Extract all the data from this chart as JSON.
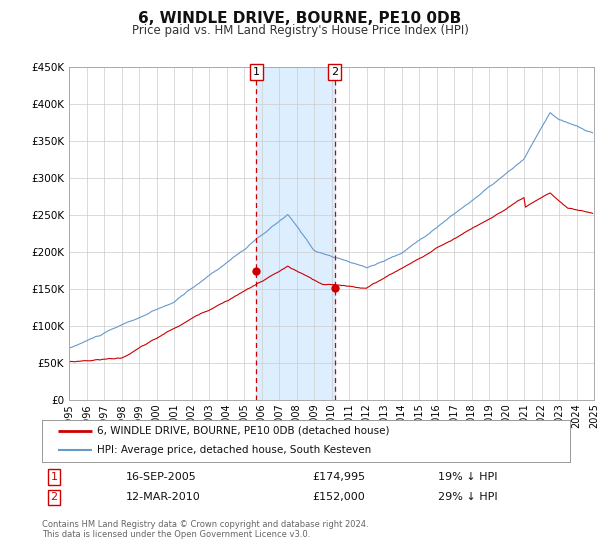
{
  "title": "6, WINDLE DRIVE, BOURNE, PE10 0DB",
  "subtitle": "Price paid vs. HM Land Registry's House Price Index (HPI)",
  "legend_line1": "6, WINDLE DRIVE, BOURNE, PE10 0DB (detached house)",
  "legend_line2": "HPI: Average price, detached house, South Kesteven",
  "footer1": "Contains HM Land Registry data © Crown copyright and database right 2024.",
  "footer2": "This data is licensed under the Open Government Licence v3.0.",
  "sale1_date": "16-SEP-2005",
  "sale1_price": "£174,995",
  "sale1_hpi": "19% ↓ HPI",
  "sale2_date": "12-MAR-2010",
  "sale2_price": "£152,000",
  "sale2_hpi": "29% ↓ HPI",
  "red_line_color": "#cc0000",
  "blue_line_color": "#6699cc",
  "shade_color": "#ddeeff",
  "marker_color": "#cc0000",
  "grid_color": "#cccccc",
  "background_color": "#ffffff",
  "sale1_x": 2005.71,
  "sale2_x": 2010.19,
  "sale1_y": 174995,
  "sale2_y": 152000,
  "ylim": [
    0,
    450000
  ],
  "xlim": [
    1995,
    2025
  ],
  "yticks": [
    0,
    50000,
    100000,
    150000,
    200000,
    250000,
    300000,
    350000,
    400000,
    450000
  ],
  "ytick_labels": [
    "£0",
    "£50K",
    "£100K",
    "£150K",
    "£200K",
    "£250K",
    "£300K",
    "£350K",
    "£400K",
    "£450K"
  ]
}
